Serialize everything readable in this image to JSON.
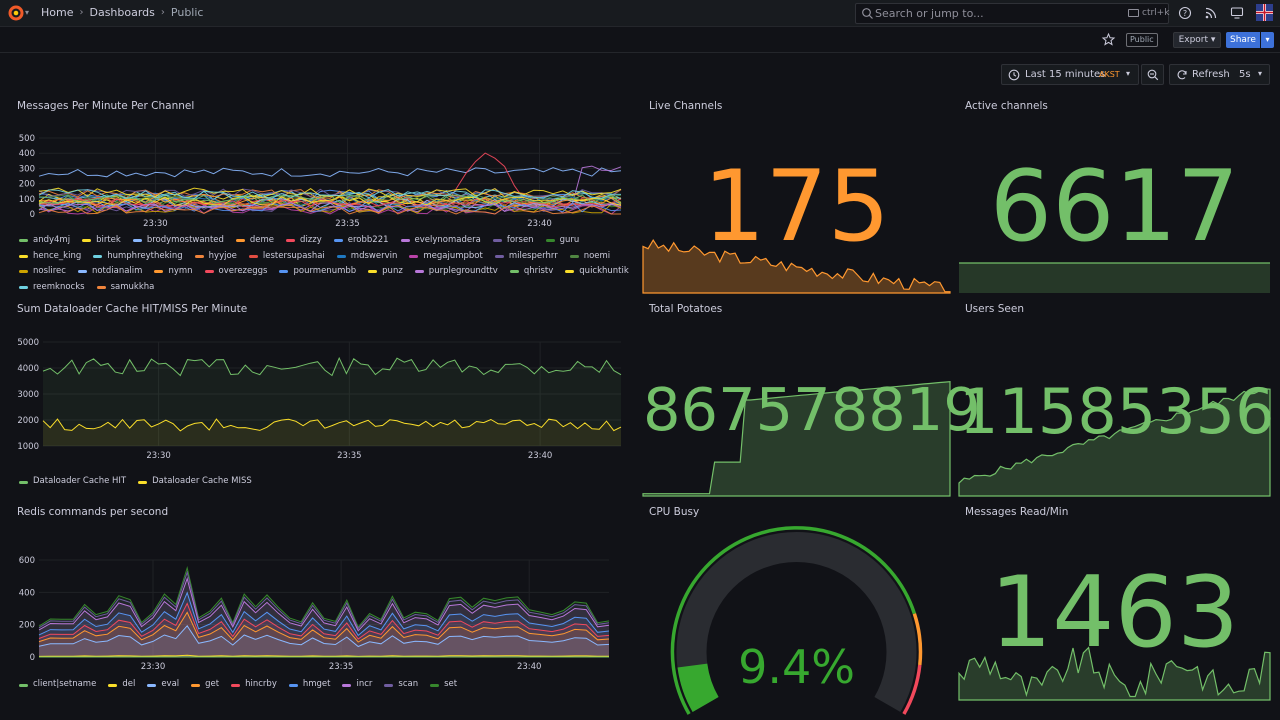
{
  "breadcrumbs": [
    "Home",
    "Dashboards",
    "Public"
  ],
  "search": {
    "placeholder": "Search or jump to...",
    "shortcut": "ctrl+k"
  },
  "toolbar": {
    "public_badge": "Public",
    "export_label": "Export",
    "share_label": "Share"
  },
  "time": {
    "range_label": "Last 15 minutes",
    "timezone": "AKST",
    "refresh_label": "Refresh",
    "interval": "5s"
  },
  "panels": {
    "messages": {
      "title": "Messages Per Minute Per Channel",
      "yticks": [
        "500",
        "400",
        "300",
        "200",
        "100",
        "0"
      ],
      "xticks": [
        "23:30",
        "23:35",
        "23:40"
      ],
      "legend": [
        {
          "name": "andy4mj",
          "color": "#73bf69"
        },
        {
          "name": "birtek",
          "color": "#fade2a"
        },
        {
          "name": "brodymostwanted",
          "color": "#8ab8ff"
        },
        {
          "name": "deme",
          "color": "#ff9830"
        },
        {
          "name": "dizzy",
          "color": "#f2495c"
        },
        {
          "name": "erobb221",
          "color": "#5794f2"
        },
        {
          "name": "evelynomadera",
          "color": "#b877d9"
        },
        {
          "name": "forsen",
          "color": "#705da0"
        },
        {
          "name": "guru",
          "color": "#37872d"
        },
        {
          "name": "hence_king",
          "color": "#fade2a"
        },
        {
          "name": "humphreytheking",
          "color": "#6ed0e0"
        },
        {
          "name": "hyyjoe",
          "color": "#ef843c"
        },
        {
          "name": "lestersupashai",
          "color": "#e24d42"
        },
        {
          "name": "mdswervin",
          "color": "#1f78c1"
        },
        {
          "name": "megajumpbot",
          "color": "#ba43a9"
        },
        {
          "name": "milesperhrr",
          "color": "#705da0"
        },
        {
          "name": "noemi",
          "color": "#508642"
        },
        {
          "name": "noslirec",
          "color": "#cca300"
        },
        {
          "name": "notdianalim",
          "color": "#8ab8ff"
        },
        {
          "name": "nymn",
          "color": "#ff9830"
        },
        {
          "name": "overezeggs",
          "color": "#f2495c"
        },
        {
          "name": "pourmenumbb",
          "color": "#5794f2"
        },
        {
          "name": "punz",
          "color": "#fade2a"
        },
        {
          "name": "purplegroundttv",
          "color": "#b877d9"
        },
        {
          "name": "qhristv",
          "color": "#73bf69"
        },
        {
          "name": "quickhuntik",
          "color": "#fade2a"
        },
        {
          "name": "reemknocks",
          "color": "#6ed0e0"
        },
        {
          "name": "samukkha",
          "color": "#ef843c"
        }
      ]
    },
    "live_channels": {
      "title": "Live Channels",
      "value": "175",
      "color": "#ff9830"
    },
    "active_channels": {
      "title": "Active channels",
      "value": "6617",
      "color": "#73bf69"
    },
    "cache": {
      "title": "Sum Dataloader Cache HIT/MISS Per Minute",
      "yticks": [
        "5000",
        "4000",
        "3000",
        "2000",
        "1000"
      ],
      "xticks": [
        "23:30",
        "23:35",
        "23:40"
      ],
      "legend": [
        {
          "name": "Dataloader Cache HIT",
          "color": "#73bf69"
        },
        {
          "name": "Dataloader Cache MISS",
          "color": "#fade2a"
        }
      ]
    },
    "total_potatoes": {
      "title": "Total Potatoes",
      "value": "867578819",
      "color": "#73bf69"
    },
    "users_seen": {
      "title": "Users Seen",
      "value": "11585356",
      "color": "#73bf69"
    },
    "redis": {
      "title": "Redis commands per second",
      "yticks": [
        "600",
        "400",
        "200",
        "0"
      ],
      "xticks": [
        "23:30",
        "23:35",
        "23:40"
      ],
      "legend": [
        {
          "name": "client|setname",
          "color": "#73bf69"
        },
        {
          "name": "del",
          "color": "#fade2a"
        },
        {
          "name": "eval",
          "color": "#8ab8ff"
        },
        {
          "name": "get",
          "color": "#ff9830"
        },
        {
          "name": "hincrby",
          "color": "#f2495c"
        },
        {
          "name": "hmget",
          "color": "#5794f2"
        },
        {
          "name": "incr",
          "color": "#b877d9"
        },
        {
          "name": "scan",
          "color": "#705da0"
        },
        {
          "name": "set",
          "color": "#37872d"
        }
      ]
    },
    "cpu_busy": {
      "title": "CPU Busy",
      "value": "9.4%",
      "percent": 9.4,
      "color": "#37a82f"
    },
    "messages_read": {
      "title": "Messages Read/Min",
      "value": "1463",
      "color": "#73bf69"
    }
  }
}
